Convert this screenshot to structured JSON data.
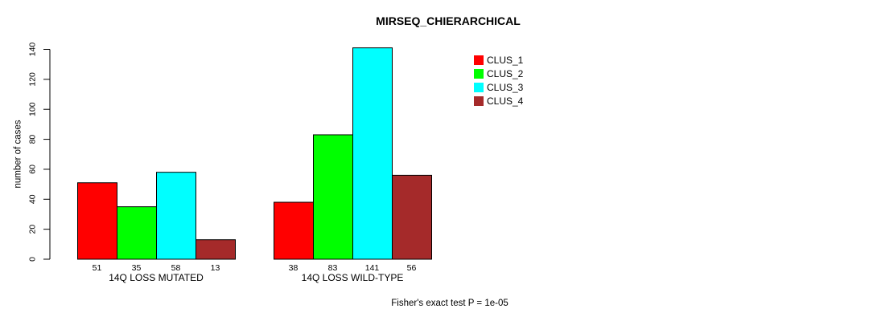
{
  "chart_data": {
    "type": "bar",
    "title": "MIRSEQ_CHIERARCHICAL",
    "ylabel": "number of cases",
    "xlabel": "",
    "ylim": [
      0,
      140
    ],
    "yticks": [
      0,
      20,
      40,
      60,
      80,
      100,
      120,
      140
    ],
    "grid": false,
    "legend_position": "top-right",
    "categories": [
      "14Q LOSS MUTATED",
      "14Q LOSS WILD-TYPE"
    ],
    "series": [
      {
        "name": "CLUS_1",
        "color": "#ff0000",
        "values": [
          51,
          38
        ]
      },
      {
        "name": "CLUS_2",
        "color": "#00ff00",
        "values": [
          35,
          83
        ]
      },
      {
        "name": "CLUS_3",
        "color": "#00ffff",
        "values": [
          58,
          141
        ]
      },
      {
        "name": "CLUS_4",
        "color": "#a52a2a",
        "values": [
          13,
          56
        ]
      }
    ],
    "show_bar_values_below": true,
    "bar_border_color": "#000000",
    "text_color": "#000000",
    "background": "#ffffff",
    "footnote": "Fisher's exact test P = 1e-05"
  }
}
